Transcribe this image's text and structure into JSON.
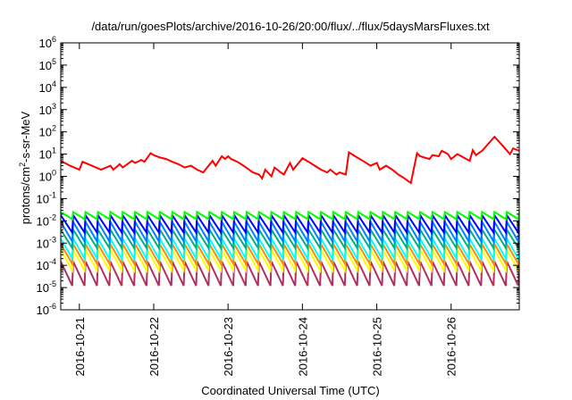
{
  "chart_data": {
    "type": "line",
    "title": "/data/run/goesPlots/archive/2016-10-26/20:00/flux/../flux/5daysMarsFluxes.txt",
    "xlabel": "Coordinated Universal Time (UTC)",
    "ylabel": "protons/cm2-s-sr-MeV",
    "ylabel_parts": {
      "before": "protons/cm",
      "sup": "2",
      "after": "-s-sr-MeV"
    },
    "yscale": "log",
    "ylim": [
      1e-06,
      1000000.0
    ],
    "xlim": [
      "2016-10-20T18:00",
      "2016-10-26T22:00"
    ],
    "grid": false,
    "y_ticks": [
      {
        "base": "10",
        "exp": "-6"
      },
      {
        "base": "10",
        "exp": "-5"
      },
      {
        "base": "10",
        "exp": "-4"
      },
      {
        "base": "10",
        "exp": "-3"
      },
      {
        "base": "10",
        "exp": "-2"
      },
      {
        "base": "10",
        "exp": "-1"
      },
      {
        "base": "10",
        "exp": "0"
      },
      {
        "base": "10",
        "exp": "1"
      },
      {
        "base": "10",
        "exp": "2"
      },
      {
        "base": "10",
        "exp": "3"
      },
      {
        "base": "10",
        "exp": "4"
      },
      {
        "base": "10",
        "exp": "5"
      },
      {
        "base": "10",
        "exp": "6"
      }
    ],
    "x_ticks": [
      "2016-10-21",
      "2016-10-22",
      "2016-10-23",
      "2016-10-24",
      "2016-10-25",
      "2016-10-26"
    ],
    "series": [
      {
        "color": "#ff0000",
        "x": [
          "2016-10-20T18:00",
          "2016-10-20T21:00",
          "2016-10-21T00:00",
          "2016-10-21T01:00",
          "2016-10-21T04:00",
          "2016-10-21T07:00",
          "2016-10-21T10:00",
          "2016-10-21T11:00",
          "2016-10-21T13:00",
          "2016-10-21T14:00",
          "2016-10-21T17:00",
          "2016-10-21T18:00",
          "2016-10-21T20:00",
          "2016-10-21T21:00",
          "2016-10-21T23:00",
          "2016-10-22T00:00",
          "2016-10-22T02:00",
          "2016-10-22T04:00",
          "2016-10-22T06:00",
          "2016-10-22T08:00",
          "2016-10-22T10:00",
          "2016-10-22T12:00",
          "2016-10-22T14:00",
          "2016-10-22T16:00",
          "2016-10-22T19:00",
          "2016-10-22T20:00",
          "2016-10-22T22:00",
          "2016-10-22T23:00",
          "2016-10-23T00:00",
          "2016-10-23T01:00",
          "2016-10-23T03:00",
          "2016-10-23T05:00",
          "2016-10-23T08:00",
          "2016-10-23T10:00",
          "2016-10-23T11:00",
          "2016-10-23T12:00",
          "2016-10-23T14:00",
          "2016-10-23T15:00",
          "2016-10-23T17:00",
          "2016-10-23T18:00",
          "2016-10-23T20:00",
          "2016-10-23T21:00",
          "2016-10-24T00:00",
          "2016-10-24T02:00",
          "2016-10-24T04:00",
          "2016-10-24T06:00",
          "2016-10-24T08:00",
          "2016-10-24T09:00",
          "2016-10-24T11:00",
          "2016-10-24T12:00",
          "2016-10-24T14:00",
          "2016-10-24T15:00",
          "2016-10-24T17:00",
          "2016-10-24T20:00",
          "2016-10-24T22:00",
          "2016-10-25T00:00",
          "2016-10-25T01:00",
          "2016-10-25T03:00",
          "2016-10-25T05:00",
          "2016-10-25T07:00",
          "2016-10-25T09:00",
          "2016-10-25T11:00",
          "2016-10-25T13:00",
          "2016-10-25T14:00",
          "2016-10-25T17:00",
          "2016-10-25T18:00",
          "2016-10-25T20:00",
          "2016-10-25T21:00",
          "2016-10-25T23:00",
          "2016-10-26T00:00",
          "2016-10-26T02:00",
          "2016-10-26T04:00",
          "2016-10-26T06:00",
          "2016-10-26T07:00",
          "2016-10-26T08:00",
          "2016-10-26T10:00",
          "2016-10-26T14:00",
          "2016-10-26T16:00",
          "2016-10-26T19:00",
          "2016-10-26T20:00",
          "2016-10-26T22:00"
        ],
        "y": [
          5,
          3,
          2,
          4.5,
          3,
          2,
          3,
          2,
          3.5,
          2.5,
          5,
          4,
          5.5,
          4.5,
          11,
          9,
          7,
          6,
          4.5,
          3.5,
          2.5,
          3,
          2,
          1.5,
          5,
          3,
          8,
          6,
          8,
          6,
          4.5,
          3,
          1.5,
          1.2,
          0.8,
          2,
          1,
          2.5,
          1.5,
          1.2,
          4,
          2,
          6.5,
          4.5,
          3,
          2,
          1.5,
          2,
          1.2,
          1.5,
          1.2,
          12,
          8,
          4.5,
          3,
          4,
          2,
          3,
          2,
          1.2,
          0.8,
          0.5,
          11,
          8,
          6,
          9,
          8,
          14,
          10,
          6,
          10,
          7,
          5,
          15,
          9,
          14,
          60,
          30,
          10,
          18,
          14
        ]
      },
      {
        "color": "#00ff00",
        "teeth": {
          "period_hours": 4,
          "start": "2016-10-20T18:00",
          "peak": 0.025,
          "trough": 0.012
        }
      },
      {
        "color": "#0000ff",
        "teeth": {
          "period_hours": 4,
          "start": "2016-10-20T18:00",
          "peak": 0.018,
          "trough": 0.003
        }
      },
      {
        "color": "#0080ff",
        "teeth": {
          "period_hours": 4,
          "start": "2016-10-20T18:00",
          "peak": 0.009,
          "trough": 0.0012
        }
      },
      {
        "color": "#00b080",
        "teeth": {
          "period_hours": 4,
          "start": "2016-10-20T18:00",
          "peak": 0.004,
          "trough": 0.0006
        }
      },
      {
        "color": "#00ffff",
        "teeth": {
          "period_hours": 4,
          "start": "2016-10-20T18:00",
          "peak": 0.0016,
          "trough": 0.0002
        }
      },
      {
        "color": "#ff8800",
        "teeth": {
          "period_hours": 4,
          "start": "2016-10-20T18:00",
          "peak": 0.0009,
          "trough": 0.00012
        }
      },
      {
        "color": "#ffff00",
        "teeth": {
          "period_hours": 4,
          "start": "2016-10-20T18:00",
          "peak": 0.0005,
          "trough": 6e-05
        }
      },
      {
        "color": "#b03060",
        "teeth": {
          "period_hours": 4,
          "start": "2016-10-20T18:00",
          "peak": 0.00015,
          "trough": 1.2e-05
        }
      }
    ]
  }
}
